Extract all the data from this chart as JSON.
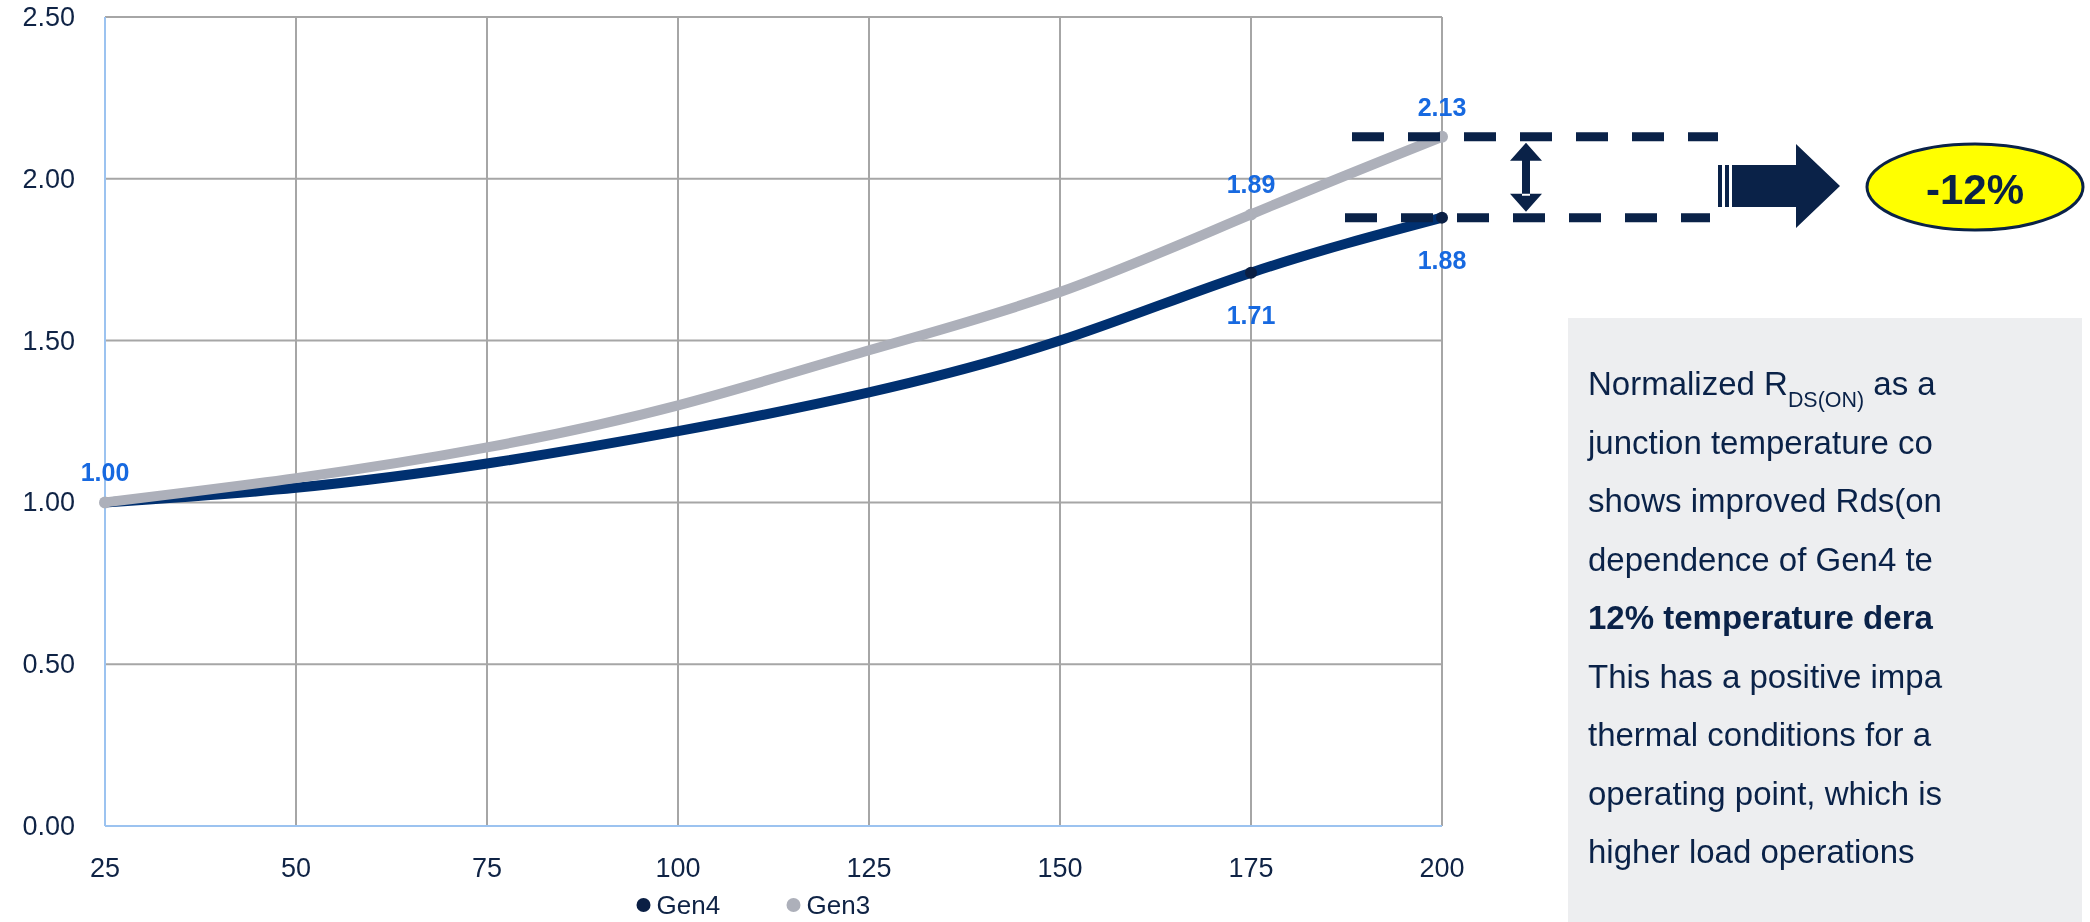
{
  "chart_data": {
    "type": "line",
    "x": [
      25,
      50,
      75,
      100,
      125,
      150,
      175,
      200
    ],
    "series": [
      {
        "name": "Gen4",
        "color": "#003070",
        "values": [
          1.0,
          1.045,
          1.12,
          1.22,
          1.34,
          1.5,
          1.71,
          1.88
        ],
        "value_labels": [
          null,
          null,
          null,
          null,
          null,
          null,
          "1.71",
          "1.88"
        ]
      },
      {
        "name": "Gen3",
        "color": "#adb0ba",
        "values": [
          1.0,
          1.075,
          1.17,
          1.3,
          1.47,
          1.65,
          1.89,
          2.13
        ],
        "value_labels": [
          "1.00",
          null,
          null,
          null,
          null,
          null,
          "1.89",
          "2.13"
        ]
      }
    ],
    "xlim": [
      25,
      200
    ],
    "xticks": [
      25,
      50,
      75,
      100,
      125,
      150,
      175,
      200
    ],
    "ylim": [
      0,
      2.5
    ],
    "yticks": [
      {
        "value": 0,
        "label": "0.00"
      },
      {
        "value": 0.5,
        "label": "0.50"
      },
      {
        "value": 1,
        "label": "1.00"
      },
      {
        "value": 1.5,
        "label": "1.50"
      },
      {
        "value": 2,
        "label": "2.00"
      },
      {
        "value": 2.5,
        "label": "2.50"
      }
    ],
    "grid": true,
    "legend": "bottom",
    "line_style": "solid",
    "annotations": [
      "-12%",
      "Normalized R$_{DS(ON)}$ as a",
      "junction temperature co",
      "shows improved Rds(on",
      "dependence of Gen4 te",
      "12% temperature dera",
      "This has a positive impa",
      "thermal conditions for a",
      "operating point, which is",
      "higher load operations"
    ]
  }
}
